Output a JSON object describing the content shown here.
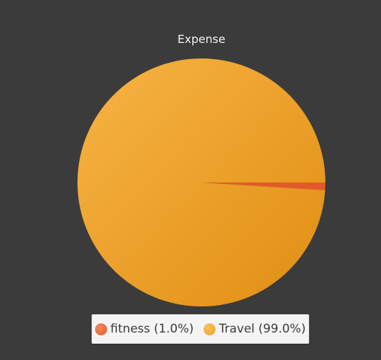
{
  "chart_data": {
    "type": "pie",
    "title": "Expense",
    "slices": [
      {
        "label": "fitness",
        "value": 1.0,
        "legend": "fitness (1.0%)",
        "color": "#e35a2a"
      },
      {
        "label": "Travel",
        "value": 99.0,
        "legend": "Travel (99.0%)",
        "color": "#f0a22e"
      }
    ],
    "legend_placement": "bottom"
  },
  "colors": {
    "background": "#3b3b3b",
    "fitness": "#e35a2a",
    "travel": "#f0a22e"
  }
}
